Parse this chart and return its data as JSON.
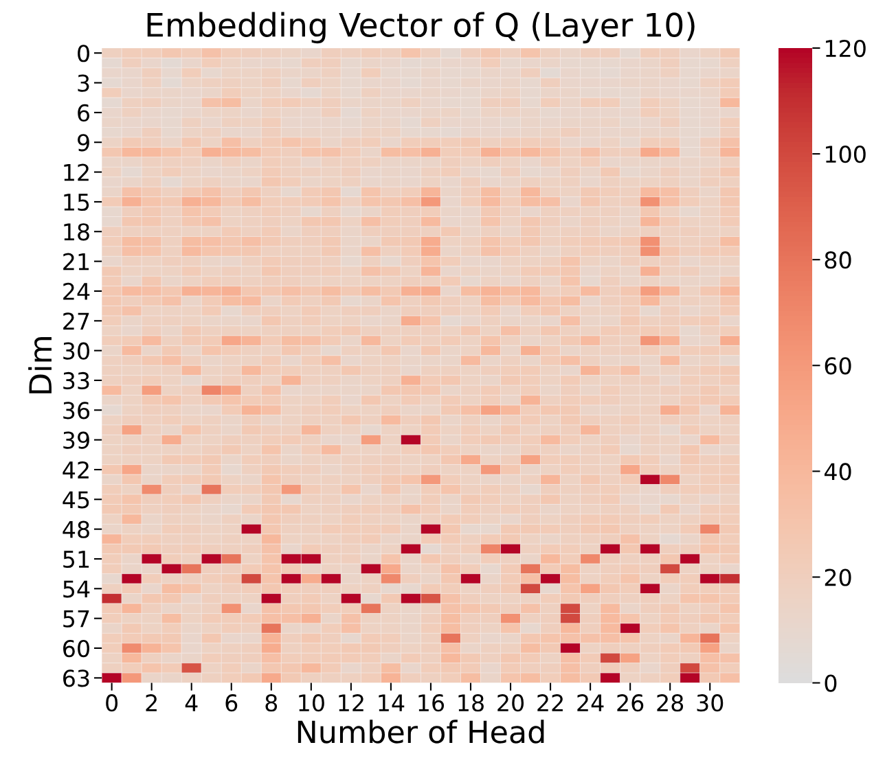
{
  "chart_data": {
    "type": "heatmap",
    "title": "Embedding Vector of Q (Layer 10)",
    "xlabel": "Number of Head",
    "ylabel": "Dim",
    "categories": [
      "0",
      null,
      "2",
      null,
      "4",
      null,
      "6",
      null,
      "8",
      null,
      "10",
      null,
      "12",
      null,
      "14",
      null,
      "16",
      null,
      "18",
      null,
      "20",
      null,
      "22",
      null,
      "24",
      null,
      "26",
      null,
      "28",
      null,
      "30",
      null
    ],
    "y_categories": [
      "0",
      null,
      null,
      "3",
      null,
      null,
      "6",
      null,
      null,
      "9",
      null,
      null,
      "12",
      null,
      null,
      "15",
      null,
      null,
      "18",
      null,
      null,
      "21",
      null,
      null,
      "24",
      null,
      null,
      "27",
      null,
      null,
      "30",
      null,
      null,
      "33",
      null,
      null,
      "36",
      null,
      null,
      "39",
      null,
      null,
      "42",
      null,
      null,
      "45",
      null,
      null,
      "48",
      null,
      null,
      "51",
      null,
      null,
      "54",
      null,
      null,
      "57",
      null,
      null,
      "60",
      null,
      null,
      "63"
    ],
    "clim": [
      0,
      120
    ],
    "cticks": [
      0,
      20,
      40,
      60,
      80,
      100,
      120
    ],
    "cells": [
      [
        18,
        22,
        22,
        28,
        22,
        32,
        22,
        20,
        18,
        15,
        12,
        20,
        18,
        22,
        18,
        30,
        18,
        8,
        20,
        28,
        18,
        30,
        18,
        14,
        20,
        20,
        8,
        22,
        20,
        12,
        16,
        26
      ],
      [
        8,
        20,
        12,
        6,
        12,
        22,
        15,
        12,
        12,
        10,
        20,
        20,
        10,
        14,
        12,
        8,
        10,
        12,
        12,
        22,
        10,
        12,
        14,
        10,
        10,
        10,
        12,
        14,
        20,
        10,
        10,
        18
      ],
      [
        12,
        12,
        20,
        10,
        22,
        10,
        15,
        15,
        18,
        14,
        14,
        18,
        10,
        22,
        10,
        10,
        14,
        10,
        10,
        14,
        12,
        20,
        6,
        12,
        10,
        8,
        12,
        14,
        18,
        10,
        12,
        14
      ],
      [
        8,
        12,
        18,
        6,
        15,
        18,
        18,
        15,
        20,
        10,
        20,
        15,
        10,
        12,
        12,
        8,
        12,
        10,
        14,
        12,
        14,
        10,
        20,
        12,
        12,
        12,
        14,
        14,
        12,
        10,
        18,
        24
      ],
      [
        22,
        12,
        14,
        14,
        12,
        14,
        22,
        16,
        16,
        12,
        8,
        15,
        10,
        18,
        12,
        12,
        14,
        12,
        10,
        14,
        15,
        10,
        14,
        14,
        10,
        10,
        10,
        14,
        12,
        12,
        14,
        24
      ],
      [
        8,
        18,
        20,
        14,
        12,
        32,
        36,
        14,
        22,
        24,
        18,
        20,
        14,
        14,
        14,
        18,
        12,
        10,
        10,
        20,
        20,
        10,
        22,
        14,
        22,
        22,
        10,
        22,
        16,
        10,
        12,
        40
      ],
      [
        12,
        18,
        12,
        10,
        12,
        15,
        15,
        12,
        16,
        14,
        12,
        20,
        8,
        16,
        12,
        12,
        14,
        15,
        10,
        15,
        15,
        14,
        10,
        12,
        12,
        12,
        12,
        22,
        16,
        10,
        12,
        12
      ],
      [
        14,
        12,
        12,
        10,
        18,
        12,
        18,
        16,
        22,
        12,
        12,
        12,
        10,
        14,
        14,
        8,
        18,
        12,
        12,
        12,
        10,
        14,
        12,
        14,
        14,
        15,
        10,
        12,
        20,
        10,
        12,
        22
      ],
      [
        10,
        12,
        20,
        10,
        15,
        18,
        12,
        12,
        20,
        14,
        14,
        14,
        12,
        16,
        16,
        10,
        10,
        8,
        12,
        12,
        12,
        14,
        15,
        20,
        14,
        12,
        14,
        14,
        14,
        10,
        10,
        20
      ],
      [
        15,
        25,
        20,
        14,
        28,
        15,
        34,
        18,
        24,
        30,
        24,
        14,
        20,
        22,
        12,
        22,
        22,
        22,
        26,
        18,
        22,
        22,
        20,
        12,
        12,
        16,
        10,
        22,
        22,
        10,
        20,
        32
      ],
      [
        28,
        40,
        38,
        30,
        22,
        45,
        40,
        36,
        24,
        20,
        30,
        32,
        22,
        14,
        36,
        34,
        45,
        22,
        24,
        45,
        32,
        40,
        30,
        20,
        32,
        20,
        20,
        50,
        38,
        10,
        18,
        42
      ],
      [
        14,
        14,
        18,
        18,
        18,
        14,
        18,
        14,
        22,
        18,
        12,
        18,
        18,
        18,
        14,
        14,
        14,
        20,
        16,
        20,
        16,
        12,
        20,
        16,
        22,
        12,
        14,
        14,
        14,
        14,
        14,
        18
      ],
      [
        16,
        8,
        16,
        22,
        15,
        12,
        14,
        16,
        24,
        18,
        18,
        16,
        20,
        12,
        14,
        12,
        18,
        22,
        12,
        10,
        20,
        10,
        12,
        20,
        14,
        26,
        10,
        14,
        20,
        14,
        18,
        28
      ],
      [
        12,
        14,
        18,
        8,
        15,
        18,
        14,
        12,
        28,
        22,
        14,
        16,
        18,
        12,
        14,
        12,
        16,
        12,
        20,
        12,
        14,
        18,
        16,
        18,
        12,
        18,
        16,
        16,
        18,
        14,
        20,
        18
      ],
      [
        14,
        32,
        26,
        18,
        26,
        32,
        20,
        28,
        18,
        10,
        24,
        28,
        8,
        30,
        18,
        22,
        42,
        14,
        20,
        36,
        18,
        40,
        18,
        16,
        26,
        22,
        18,
        38,
        34,
        20,
        14,
        28
      ],
      [
        24,
        45,
        30,
        26,
        45,
        40,
        26,
        36,
        22,
        22,
        24,
        30,
        18,
        30,
        28,
        34,
        60,
        12,
        22,
        38,
        22,
        36,
        34,
        12,
        28,
        18,
        20,
        65,
        34,
        22,
        16,
        28
      ],
      [
        10,
        20,
        26,
        18,
        30,
        24,
        16,
        18,
        22,
        18,
        10,
        18,
        10,
        14,
        22,
        20,
        22,
        14,
        12,
        26,
        18,
        12,
        18,
        18,
        16,
        18,
        14,
        28,
        16,
        10,
        16,
        24
      ],
      [
        10,
        28,
        28,
        18,
        28,
        32,
        16,
        18,
        20,
        16,
        28,
        28,
        16,
        34,
        22,
        20,
        38,
        12,
        14,
        30,
        16,
        28,
        20,
        14,
        20,
        16,
        14,
        42,
        24,
        16,
        16,
        24
      ],
      [
        20,
        18,
        18,
        18,
        16,
        16,
        24,
        18,
        24,
        14,
        20,
        20,
        14,
        20,
        20,
        20,
        18,
        26,
        14,
        18,
        14,
        26,
        16,
        18,
        18,
        14,
        16,
        18,
        18,
        20,
        16,
        16
      ],
      [
        22,
        36,
        32,
        18,
        36,
        34,
        28,
        34,
        26,
        20,
        20,
        26,
        14,
        14,
        26,
        26,
        48,
        16,
        18,
        30,
        22,
        28,
        18,
        22,
        24,
        24,
        26,
        65,
        20,
        18,
        20,
        36
      ],
      [
        18,
        34,
        30,
        18,
        38,
        30,
        28,
        28,
        18,
        18,
        18,
        26,
        14,
        34,
        18,
        24,
        48,
        14,
        18,
        32,
        24,
        18,
        14,
        18,
        22,
        20,
        20,
        66,
        28,
        20,
        24,
        24
      ],
      [
        12,
        18,
        16,
        20,
        18,
        14,
        12,
        18,
        24,
        20,
        20,
        18,
        10,
        18,
        10,
        20,
        30,
        22,
        12,
        12,
        16,
        16,
        18,
        30,
        16,
        14,
        20,
        18,
        20,
        12,
        16,
        16
      ],
      [
        26,
        16,
        16,
        16,
        24,
        16,
        20,
        16,
        28,
        20,
        20,
        22,
        16,
        32,
        26,
        16,
        42,
        12,
        16,
        14,
        16,
        24,
        24,
        28,
        12,
        16,
        14,
        45,
        18,
        20,
        14,
        14
      ],
      [
        24,
        12,
        28,
        14,
        16,
        22,
        18,
        18,
        20,
        20,
        16,
        16,
        16,
        16,
        16,
        20,
        18,
        24,
        10,
        16,
        12,
        18,
        14,
        30,
        10,
        20,
        14,
        16,
        14,
        14,
        14,
        26
      ],
      [
        28,
        38,
        34,
        28,
        45,
        42,
        45,
        28,
        28,
        34,
        28,
        36,
        26,
        36,
        26,
        45,
        48,
        12,
        36,
        44,
        36,
        40,
        18,
        22,
        38,
        20,
        28,
        58,
        40,
        16,
        28,
        40
      ],
      [
        28,
        20,
        26,
        32,
        14,
        24,
        36,
        38,
        14,
        24,
        18,
        26,
        10,
        14,
        30,
        18,
        26,
        20,
        16,
        36,
        26,
        38,
        28,
        36,
        12,
        20,
        22,
        40,
        16,
        18,
        16,
        28
      ],
      [
        26,
        32,
        16,
        16,
        16,
        24,
        10,
        20,
        20,
        16,
        24,
        16,
        20,
        20,
        14,
        20,
        20,
        20,
        16,
        24,
        12,
        22,
        28,
        16,
        16,
        16,
        22,
        10,
        20,
        12,
        16,
        24
      ],
      [
        22,
        14,
        18,
        18,
        16,
        14,
        14,
        12,
        28,
        18,
        22,
        16,
        16,
        12,
        14,
        48,
        30,
        8,
        12,
        18,
        14,
        14,
        12,
        34,
        14,
        14,
        26,
        18,
        20,
        22,
        24,
        12
      ],
      [
        16,
        12,
        20,
        14,
        26,
        18,
        18,
        16,
        18,
        18,
        16,
        22,
        26,
        18,
        18,
        18,
        20,
        16,
        28,
        16,
        34,
        18,
        28,
        18,
        16,
        24,
        22,
        24,
        22,
        10,
        18,
        22
      ],
      [
        22,
        24,
        38,
        18,
        26,
        24,
        52,
        44,
        24,
        36,
        34,
        24,
        14,
        40,
        16,
        24,
        18,
        24,
        16,
        30,
        18,
        14,
        16,
        26,
        38,
        20,
        18,
        62,
        44,
        12,
        14,
        48
      ],
      [
        14,
        38,
        14,
        26,
        14,
        30,
        24,
        18,
        16,
        28,
        18,
        10,
        18,
        16,
        28,
        12,
        28,
        14,
        16,
        40,
        14,
        46,
        24,
        14,
        16,
        18,
        20,
        22,
        16,
        22,
        24,
        22
      ],
      [
        18,
        20,
        28,
        34,
        20,
        14,
        16,
        16,
        24,
        12,
        22,
        34,
        12,
        16,
        16,
        14,
        14,
        14,
        38,
        14,
        18,
        14,
        24,
        34,
        18,
        14,
        14,
        14,
        38,
        14,
        16,
        10
      ],
      [
        18,
        16,
        16,
        18,
        40,
        16,
        18,
        40,
        22,
        22,
        18,
        18,
        28,
        18,
        18,
        12,
        18,
        18,
        16,
        20,
        22,
        24,
        16,
        12,
        44,
        24,
        34,
        14,
        16,
        18,
        24,
        26
      ],
      [
        18,
        20,
        22,
        16,
        10,
        16,
        20,
        20,
        16,
        44,
        18,
        18,
        14,
        16,
        18,
        45,
        24,
        28,
        16,
        14,
        26,
        22,
        16,
        24,
        16,
        16,
        18,
        20,
        12,
        22,
        18,
        24
      ],
      [
        38,
        16,
        58,
        16,
        20,
        72,
        55,
        18,
        32,
        12,
        14,
        14,
        14,
        14,
        28,
        28,
        28,
        14,
        18,
        24,
        16,
        22,
        14,
        20,
        14,
        22,
        16,
        16,
        20,
        18,
        26,
        16
      ],
      [
        14,
        16,
        26,
        30,
        18,
        26,
        30,
        24,
        24,
        16,
        16,
        22,
        12,
        28,
        16,
        24,
        16,
        24,
        16,
        22,
        14,
        44,
        18,
        22,
        22,
        20,
        16,
        16,
        16,
        24,
        26,
        24
      ],
      [
        8,
        16,
        20,
        18,
        14,
        12,
        24,
        44,
        34,
        16,
        20,
        22,
        16,
        16,
        20,
        14,
        14,
        26,
        34,
        55,
        40,
        22,
        28,
        26,
        14,
        14,
        16,
        18,
        48,
        28,
        12,
        44
      ],
      [
        16,
        20,
        18,
        22,
        16,
        18,
        14,
        20,
        14,
        16,
        18,
        18,
        28,
        18,
        38,
        20,
        28,
        14,
        18,
        14,
        18,
        24,
        16,
        26,
        20,
        18,
        22,
        16,
        20,
        18,
        16,
        18
      ],
      [
        20,
        55,
        18,
        14,
        30,
        18,
        14,
        26,
        20,
        18,
        42,
        18,
        16,
        10,
        16,
        16,
        24,
        16,
        22,
        16,
        26,
        16,
        18,
        20,
        42,
        18,
        18,
        16,
        10,
        24,
        16,
        16
      ],
      [
        16,
        16,
        18,
        48,
        16,
        16,
        20,
        18,
        22,
        24,
        18,
        12,
        12,
        58,
        16,
        120,
        24,
        14,
        22,
        26,
        20,
        22,
        38,
        22,
        16,
        20,
        12,
        18,
        16,
        12,
        38,
        20
      ],
      [
        16,
        20,
        16,
        16,
        16,
        20,
        26,
        16,
        30,
        14,
        22,
        38,
        16,
        16,
        16,
        22,
        28,
        22,
        16,
        14,
        14,
        20,
        18,
        14,
        18,
        24,
        10,
        16,
        16,
        28,
        12,
        14
      ],
      [
        16,
        16,
        16,
        26,
        24,
        26,
        14,
        22,
        20,
        14,
        16,
        16,
        18,
        18,
        20,
        16,
        16,
        28,
        50,
        16,
        20,
        55,
        22,
        22,
        18,
        16,
        26,
        22,
        12,
        26,
        20,
        22
      ],
      [
        28,
        52,
        14,
        14,
        14,
        24,
        10,
        18,
        26,
        22,
        20,
        14,
        18,
        22,
        20,
        16,
        20,
        16,
        16,
        60,
        28,
        14,
        16,
        22,
        18,
        18,
        52,
        22,
        16,
        22,
        22,
        22
      ],
      [
        14,
        28,
        14,
        22,
        24,
        26,
        16,
        14,
        30,
        20,
        16,
        18,
        16,
        20,
        26,
        30,
        60,
        22,
        16,
        14,
        14,
        18,
        42,
        16,
        28,
        18,
        24,
        120,
        70,
        16,
        22,
        24
      ],
      [
        22,
        16,
        68,
        20,
        12,
        80,
        22,
        22,
        28,
        60,
        24,
        18,
        30,
        12,
        28,
        14,
        22,
        30,
        18,
        22,
        18,
        10,
        20,
        18,
        20,
        22,
        16,
        12,
        20,
        22,
        22,
        18
      ],
      [
        24,
        30,
        20,
        22,
        28,
        18,
        14,
        14,
        26,
        10,
        18,
        18,
        12,
        16,
        16,
        14,
        22,
        14,
        26,
        22,
        16,
        20,
        28,
        16,
        20,
        24,
        12,
        12,
        10,
        16,
        12,
        16
      ],
      [
        26,
        26,
        18,
        20,
        16,
        14,
        10,
        24,
        28,
        28,
        16,
        18,
        20,
        22,
        20,
        32,
        22,
        14,
        22,
        18,
        22,
        20,
        14,
        16,
        16,
        18,
        18,
        10,
        26,
        12,
        22,
        22
      ],
      [
        16,
        40,
        14,
        18,
        16,
        14,
        18,
        14,
        28,
        20,
        18,
        16,
        22,
        18,
        16,
        14,
        18,
        24,
        22,
        16,
        12,
        20,
        16,
        20,
        24,
        24,
        20,
        22,
        16,
        18,
        22,
        22
      ],
      [
        14,
        16,
        14,
        22,
        20,
        16,
        16,
        120,
        28,
        18,
        18,
        24,
        22,
        22,
        24,
        14,
        120,
        28,
        10,
        10,
        26,
        26,
        24,
        20,
        26,
        28,
        18,
        16,
        16,
        24,
        72,
        26
      ],
      [
        42,
        22,
        22,
        18,
        18,
        16,
        18,
        16,
        40,
        16,
        16,
        16,
        20,
        24,
        14,
        14,
        24,
        24,
        18,
        24,
        26,
        16,
        14,
        18,
        18,
        20,
        32,
        16,
        8,
        14,
        26,
        22
      ],
      [
        26,
        26,
        26,
        20,
        22,
        20,
        18,
        20,
        32,
        12,
        24,
        20,
        18,
        14,
        16,
        120,
        8,
        18,
        22,
        72,
        120,
        18,
        24,
        22,
        16,
        120,
        28,
        120,
        20,
        20,
        30,
        26
      ],
      [
        22,
        14,
        120,
        22,
        16,
        120,
        80,
        16,
        30,
        120,
        120,
        18,
        20,
        14,
        30,
        14,
        28,
        20,
        14,
        22,
        18,
        14,
        40,
        22,
        70,
        20,
        18,
        18,
        28,
        120,
        16,
        24
      ],
      [
        22,
        14,
        14,
        120,
        80,
        20,
        18,
        24,
        30,
        24,
        14,
        16,
        14,
        120,
        50,
        14,
        16,
        32,
        22,
        10,
        24,
        80,
        24,
        36,
        16,
        20,
        24,
        20,
        100,
        16,
        16,
        12
      ],
      [
        10,
        120,
        22,
        16,
        18,
        22,
        26,
        100,
        30,
        120,
        48,
        120,
        14,
        16,
        70,
        20,
        14,
        28,
        120,
        14,
        24,
        34,
        120,
        36,
        16,
        22,
        30,
        16,
        22,
        22,
        120,
        110
      ],
      [
        18,
        24,
        12,
        36,
        30,
        16,
        20,
        22,
        28,
        22,
        20,
        20,
        16,
        18,
        10,
        10,
        24,
        22,
        16,
        20,
        26,
        100,
        10,
        30,
        55,
        28,
        22,
        120,
        14,
        22,
        22,
        22
      ],
      [
        110,
        14,
        28,
        28,
        12,
        20,
        16,
        16,
        120,
        20,
        24,
        16,
        120,
        10,
        26,
        120,
        95,
        32,
        20,
        16,
        16,
        16,
        22,
        26,
        20,
        20,
        18,
        20,
        16,
        30,
        30,
        24
      ],
      [
        24,
        42,
        20,
        14,
        16,
        18,
        65,
        12,
        32,
        28,
        28,
        22,
        22,
        80,
        16,
        14,
        16,
        32,
        30,
        26,
        20,
        32,
        18,
        100,
        16,
        38,
        14,
        20,
        26,
        16,
        20,
        30
      ],
      [
        22,
        16,
        16,
        36,
        16,
        24,
        22,
        24,
        34,
        34,
        45,
        14,
        32,
        16,
        16,
        14,
        20,
        36,
        20,
        20,
        65,
        18,
        20,
        100,
        20,
        38,
        30,
        16,
        24,
        20,
        28,
        22
      ],
      [
        14,
        26,
        16,
        22,
        14,
        16,
        22,
        18,
        80,
        14,
        14,
        22,
        34,
        16,
        16,
        14,
        22,
        36,
        20,
        16,
        30,
        10,
        20,
        40,
        20,
        38,
        120,
        22,
        30,
        18,
        14,
        30
      ],
      [
        22,
        24,
        26,
        26,
        12,
        28,
        12,
        12,
        44,
        20,
        28,
        20,
        10,
        24,
        22,
        14,
        18,
        80,
        18,
        12,
        14,
        28,
        30,
        32,
        32,
        34,
        30,
        16,
        14,
        42,
        80,
        16
      ],
      [
        22,
        68,
        44,
        30,
        12,
        16,
        18,
        20,
        48,
        18,
        22,
        22,
        26,
        26,
        20,
        16,
        20,
        34,
        14,
        18,
        18,
        36,
        26,
        120,
        16,
        20,
        18,
        20,
        24,
        26,
        55,
        14
      ],
      [
        16,
        40,
        18,
        14,
        14,
        22,
        20,
        20,
        34,
        22,
        22,
        24,
        24,
        22,
        14,
        24,
        18,
        40,
        26,
        18,
        28,
        24,
        16,
        34,
        24,
        100,
        55,
        16,
        22,
        18,
        34,
        32
      ],
      [
        18,
        22,
        30,
        24,
        95,
        16,
        22,
        14,
        28,
        28,
        40,
        24,
        12,
        18,
        36,
        12,
        22,
        26,
        24,
        12,
        24,
        20,
        20,
        34,
        20,
        22,
        18,
        12,
        20,
        100,
        32,
        22
      ],
      [
        120,
        60,
        14,
        14,
        16,
        18,
        22,
        26,
        50,
        26,
        18,
        18,
        18,
        22,
        44,
        20,
        18,
        22,
        36,
        14,
        30,
        36,
        22,
        36,
        26,
        120,
        16,
        18,
        22,
        120,
        26,
        34
      ]
    ]
  }
}
